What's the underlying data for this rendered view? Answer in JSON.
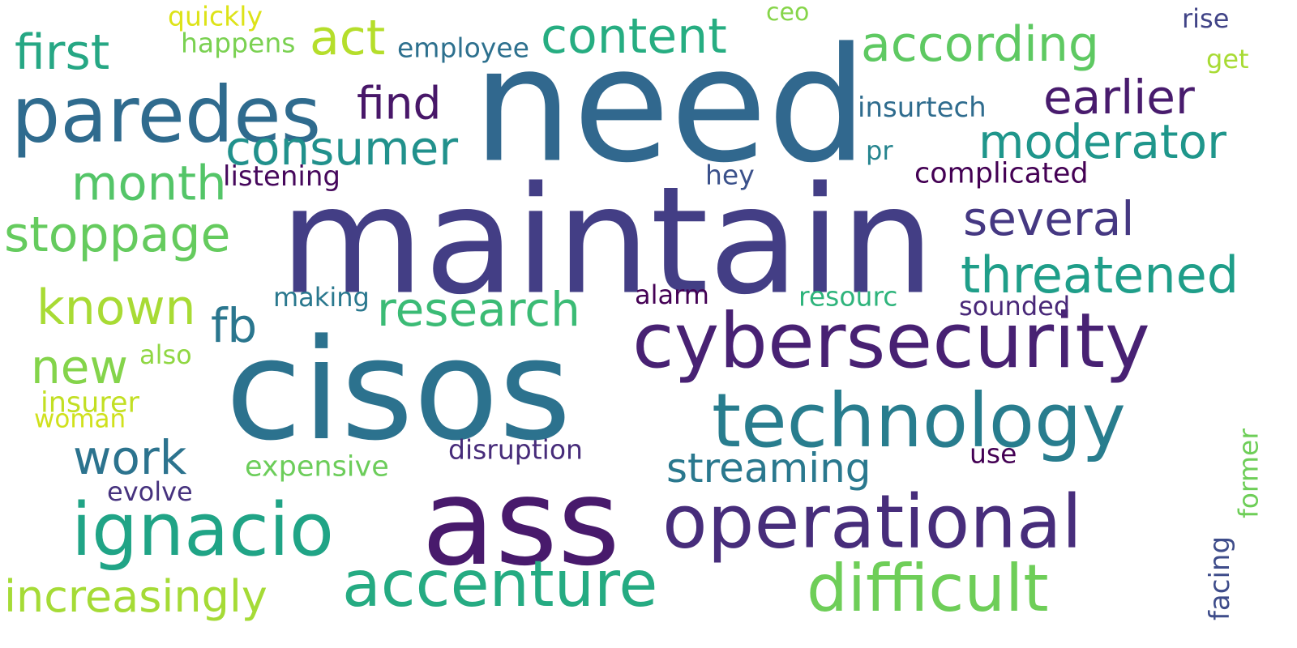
{
  "words": [
    {
      "id": "need",
      "text": "need",
      "color": "#31688e"
    },
    {
      "id": "maintain",
      "text": "maintain",
      "color": "#433e85"
    },
    {
      "id": "cisos",
      "text": "cisos",
      "color": "#2c728e"
    },
    {
      "id": "ass",
      "text": "ass",
      "color": "#481a6c"
    },
    {
      "id": "paredes",
      "text": "paredes",
      "color": "#2f6b8e"
    },
    {
      "id": "cybersecurity",
      "text": "cybersecurity",
      "color": "#482173"
    },
    {
      "id": "technology",
      "text": "technology",
      "color": "#287d8e"
    },
    {
      "id": "operational",
      "text": "operational",
      "color": "#472d7b"
    },
    {
      "id": "ignacio",
      "text": "ignacio",
      "color": "#20a486"
    },
    {
      "id": "accenture",
      "text": "accenture",
      "color": "#25ab82"
    },
    {
      "id": "difficult",
      "text": "difficult",
      "color": "#6ece58"
    },
    {
      "id": "increasingly",
      "text": "increasingly",
      "color": "#a5db36"
    },
    {
      "id": "content",
      "text": "content",
      "color": "#26ad81"
    },
    {
      "id": "according",
      "text": "according",
      "color": "#5ec962"
    },
    {
      "id": "first",
      "text": "first",
      "color": "#26a784"
    },
    {
      "id": "act",
      "text": "act",
      "color": "#b5de2b"
    },
    {
      "id": "consumer",
      "text": "consumer",
      "color": "#21918c"
    },
    {
      "id": "moderator",
      "text": "moderator",
      "color": "#1f968b"
    },
    {
      "id": "earlier",
      "text": "earlier",
      "color": "#481b6d"
    },
    {
      "id": "find",
      "text": "find",
      "color": "#481769"
    },
    {
      "id": "month",
      "text": "month",
      "color": "#54c568"
    },
    {
      "id": "stoppage",
      "text": "stoppage",
      "color": "#65cb5e"
    },
    {
      "id": "several",
      "text": "several",
      "color": "#453882"
    },
    {
      "id": "threatened",
      "text": "threatened",
      "color": "#1f9e89"
    },
    {
      "id": "known",
      "text": "known",
      "color": "#a8db34"
    },
    {
      "id": "research",
      "text": "research",
      "color": "#3bbb75"
    },
    {
      "id": "fb",
      "text": "fb",
      "color": "#2a768e"
    },
    {
      "id": "new",
      "text": "new",
      "color": "#84d44b"
    },
    {
      "id": "work",
      "text": "work",
      "color": "#2c738e"
    },
    {
      "id": "streaming",
      "text": "streaming",
      "color": "#2a788e"
    },
    {
      "id": "quickly",
      "text": "quickly",
      "color": "#dde318"
    },
    {
      "id": "happens",
      "text": "happens",
      "color": "#7ad151"
    },
    {
      "id": "employee",
      "text": "employee",
      "color": "#2d708e"
    },
    {
      "id": "ceo",
      "text": "ceo",
      "color": "#86d549"
    },
    {
      "id": "rise",
      "text": "rise",
      "color": "#414487"
    },
    {
      "id": "get",
      "text": "get",
      "color": "#a8db34"
    },
    {
      "id": "insurtech",
      "text": "insurtech",
      "color": "#2f6c8e"
    },
    {
      "id": "pr",
      "text": "pr",
      "color": "#25848e"
    },
    {
      "id": "listening",
      "text": "listening",
      "color": "#46085c"
    },
    {
      "id": "hey",
      "text": "hey",
      "color": "#3b518b"
    },
    {
      "id": "complicated",
      "text": "complicated",
      "color": "#440154"
    },
    {
      "id": "making",
      "text": "making",
      "color": "#2a788e"
    },
    {
      "id": "alarm",
      "text": "alarm",
      "color": "#440154"
    },
    {
      "id": "resourc",
      "text": "resourc",
      "color": "#2fb47c"
    },
    {
      "id": "sounded",
      "text": "sounded",
      "color": "#482878"
    },
    {
      "id": "also",
      "text": "also",
      "color": "#90d743"
    },
    {
      "id": "insurer",
      "text": "insurer",
      "color": "#c2df23"
    },
    {
      "id": "woman",
      "text": "woman",
      "color": "#d0e11c"
    },
    {
      "id": "disruption",
      "text": "disruption",
      "color": "#472c7a"
    },
    {
      "id": "use",
      "text": "use",
      "color": "#440154"
    },
    {
      "id": "expensive",
      "text": "expensive",
      "color": "#6ccd5a"
    },
    {
      "id": "evolve",
      "text": "evolve",
      "color": "#46327e"
    },
    {
      "id": "former",
      "text": "former",
      "color": "#6ece58"
    },
    {
      "id": "facing",
      "text": "facing",
      "color": "#3e4c8a"
    }
  ]
}
